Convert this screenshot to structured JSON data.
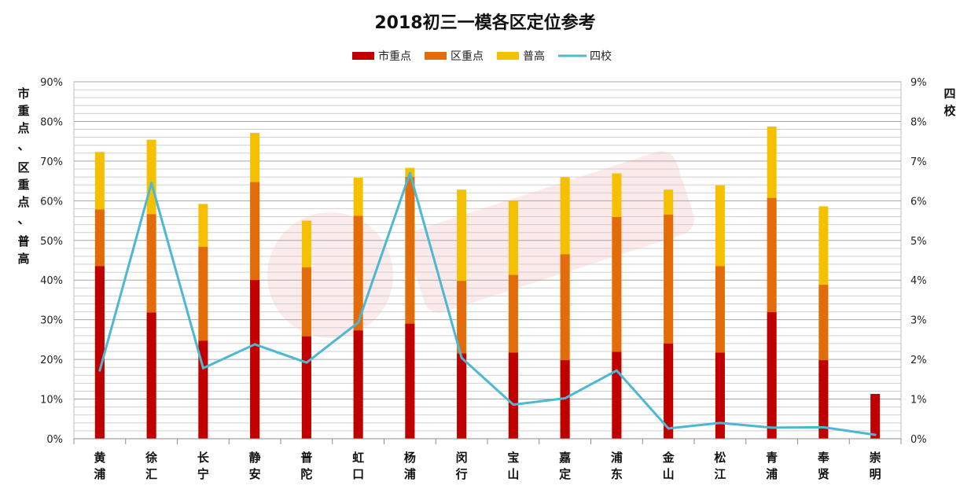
{
  "chart_data": {
    "type": "bar",
    "title": "2018初三一模各区定位参考",
    "categories": [
      "黄浦",
      "徐汇",
      "长宁",
      "静安",
      "普陀",
      "虹口",
      "杨浦",
      "闵行",
      "宝山",
      "嘉定",
      "浦东",
      "金山",
      "松江",
      "青浦",
      "奉贤",
      "崇明"
    ],
    "series": [
      {
        "name": "市重点",
        "type": "bar",
        "axis": "left",
        "color": "#C00000",
        "values": [
          43.5,
          31.8,
          24.7,
          40.0,
          25.8,
          27.3,
          29.0,
          21.5,
          21.7,
          19.8,
          21.9,
          24.0,
          21.7,
          31.9,
          19.8,
          11.3
        ]
      },
      {
        "name": "区重点",
        "type": "bar",
        "axis": "left",
        "color": "#E36C0A",
        "values": [
          57.8,
          56.6,
          48.4,
          64.7,
          43.2,
          56.2,
          66.0,
          39.8,
          41.3,
          46.5,
          55.9,
          56.5,
          43.5,
          60.7,
          38.8,
          null
        ]
      },
      {
        "name": "普高",
        "type": "bar",
        "axis": "left",
        "color": "#F5C000",
        "values": [
          72.3,
          75.4,
          59.2,
          77.1,
          55.0,
          65.8,
          68.3,
          62.8,
          60.0,
          66.0,
          66.9,
          62.8,
          63.9,
          78.7,
          58.6,
          null
        ]
      },
      {
        "name": "四校",
        "type": "line",
        "axis": "right",
        "color": "#4BB8D4",
        "values": [
          1.72,
          6.45,
          1.78,
          2.38,
          1.92,
          2.93,
          6.7,
          2.04,
          0.86,
          1.02,
          1.72,
          0.26,
          0.4,
          0.28,
          0.29,
          0.1
        ]
      }
    ],
    "left_axis": {
      "label": "市重点、区重点、普高",
      "ylim": [
        0,
        90
      ],
      "ticks": [
        "0%",
        "10%",
        "20%",
        "30%",
        "40%",
        "50%",
        "60%",
        "70%",
        "80%",
        "90%"
      ]
    },
    "right_axis": {
      "label": "四校",
      "ylim": [
        0,
        9
      ],
      "ticks": [
        "0%",
        "1%",
        "2%",
        "3%",
        "4%",
        "5%",
        "6%",
        "7%",
        "8%",
        "9%"
      ]
    },
    "grid": true,
    "legend_position": "top"
  }
}
